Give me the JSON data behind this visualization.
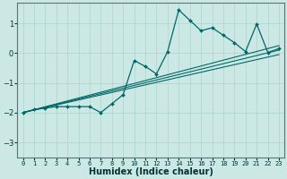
{
  "xlabel": "Humidex (Indice chaleur)",
  "ylabel": "",
  "bg_color": "#cce8e4",
  "grid_color": "#aad4cc",
  "line_color": "#006868",
  "xlim": [
    -0.5,
    23.5
  ],
  "ylim": [
    -3.5,
    1.7
  ],
  "yticks": [
    -3,
    -2,
    -1,
    0,
    1
  ],
  "xticks": [
    0,
    1,
    2,
    3,
    4,
    5,
    6,
    7,
    8,
    9,
    10,
    11,
    12,
    13,
    14,
    15,
    16,
    17,
    18,
    19,
    20,
    21,
    22,
    23
  ],
  "series1_x": [
    0,
    1,
    2,
    3,
    4,
    5,
    6,
    7,
    8,
    9,
    10,
    11,
    12,
    13,
    14,
    15,
    16,
    17,
    18,
    19,
    20,
    21,
    22,
    23
  ],
  "series1_y": [
    -2.0,
    -1.9,
    -1.85,
    -1.8,
    -1.8,
    -1.8,
    -1.8,
    -2.0,
    -1.7,
    -1.4,
    -0.25,
    -0.45,
    -0.7,
    0.05,
    1.45,
    1.1,
    0.75,
    0.85,
    0.6,
    0.35,
    0.05,
    0.98,
    0.02,
    0.15
  ],
  "trend1_x": [
    0,
    23
  ],
  "trend1_y": [
    -2.0,
    -0.05
  ],
  "trend2_x": [
    0,
    23
  ],
  "trend2_y": [
    -2.0,
    0.1
  ],
  "trend3_x": [
    0,
    23
  ],
  "trend3_y": [
    -2.0,
    0.25
  ]
}
